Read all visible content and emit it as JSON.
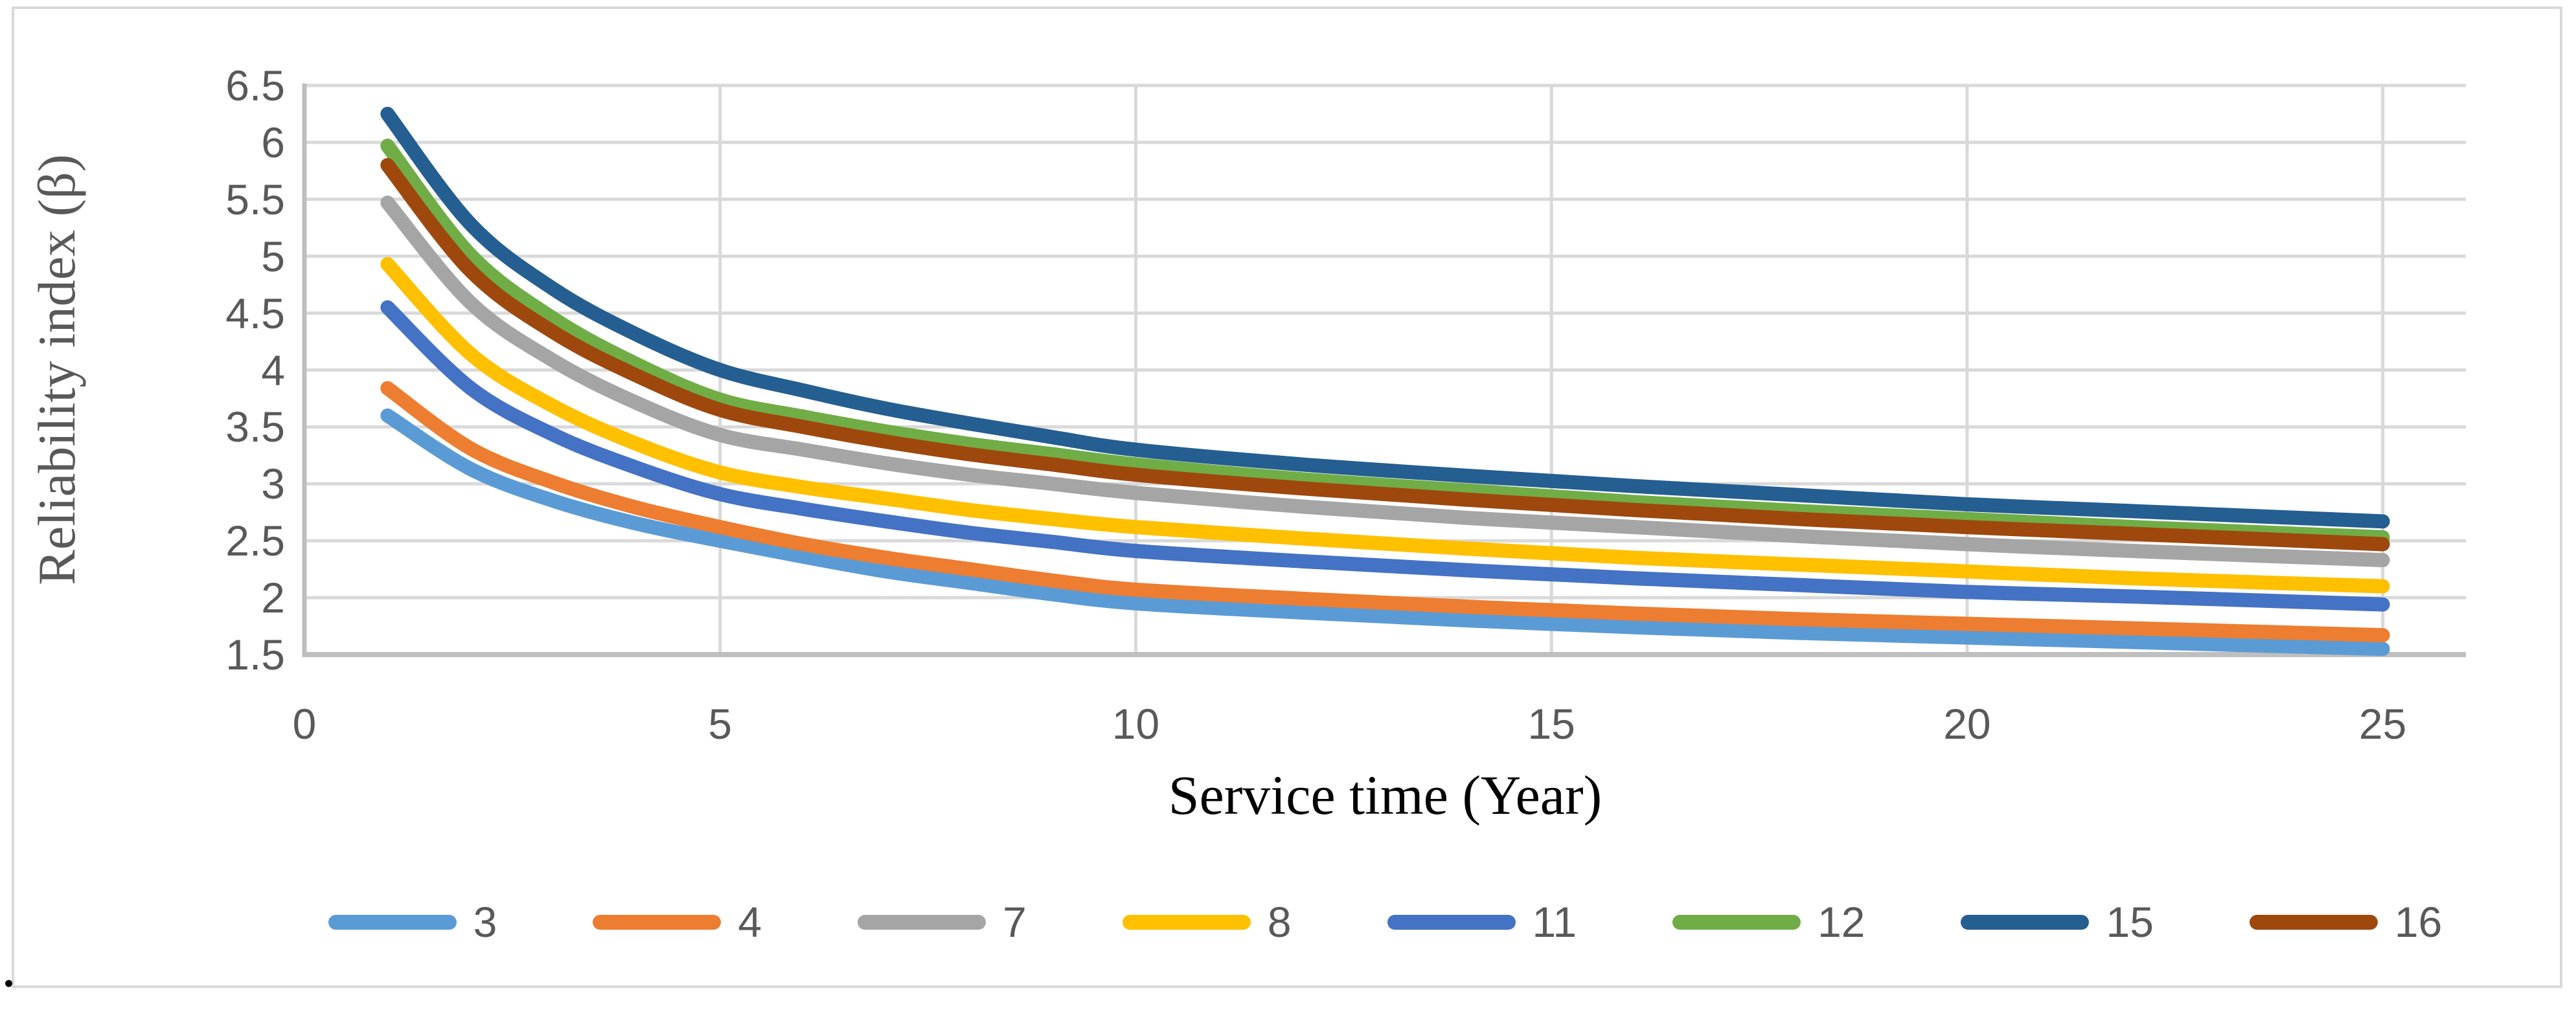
{
  "figure": {
    "trailing_period": "."
  },
  "colors": {
    "gridline": "#D9D9D9",
    "axis_line": "#BFBFBF",
    "tick_text": "#595959",
    "x_title_text": "#000000",
    "y_title_text": "#595959",
    "figure_border": "#D9D9D9",
    "background": "#FFFFFF"
  },
  "chart_data": {
    "type": "line",
    "title": "",
    "xlabel": "Service time (Year)",
    "ylabel": "Reliability index (β)",
    "xlim": [
      0,
      26
    ],
    "ylim": [
      1.5,
      6.5
    ],
    "grid": true,
    "legend_position": "bottom",
    "x_ticks": [
      0,
      5,
      10,
      15,
      20,
      25
    ],
    "x_tick_labels": [
      "0",
      "5",
      "10",
      "15",
      "20",
      "25"
    ],
    "y_ticks": [
      6.5,
      6,
      5.5,
      5,
      4.5,
      4,
      3.5,
      3,
      2.5,
      2,
      1.5
    ],
    "y_tick_labels": [
      "6.5",
      "6",
      "5.5",
      "5",
      "4.5",
      "4",
      "3.5",
      "3",
      "2.5",
      "2",
      "1.5"
    ],
    "x": [
      1,
      2,
      3,
      4,
      5,
      6,
      7,
      8,
      9,
      10,
      12,
      14,
      16,
      18,
      20,
      22,
      25
    ],
    "series": [
      {
        "name": "3",
        "color": "#5B9BD5",
        "values": [
          3.6,
          3.13,
          2.85,
          2.65,
          2.5,
          2.36,
          2.23,
          2.13,
          2.03,
          1.95,
          1.87,
          1.8,
          1.74,
          1.69,
          1.65,
          1.61,
          1.55
        ]
      },
      {
        "name": "4",
        "color": "#ED7D31",
        "values": [
          3.84,
          3.31,
          3.01,
          2.79,
          2.62,
          2.47,
          2.35,
          2.25,
          2.15,
          2.07,
          1.99,
          1.92,
          1.86,
          1.81,
          1.77,
          1.73,
          1.67
        ]
      },
      {
        "name": "7",
        "color": "#A5A5A5",
        "values": [
          5.47,
          4.59,
          4.08,
          3.71,
          3.43,
          3.3,
          3.18,
          3.08,
          3.0,
          2.92,
          2.8,
          2.7,
          2.62,
          2.54,
          2.47,
          2.41,
          2.33
        ]
      },
      {
        "name": "8",
        "color": "#FFC000",
        "values": [
          4.93,
          4.14,
          3.68,
          3.35,
          3.1,
          2.97,
          2.87,
          2.77,
          2.69,
          2.62,
          2.52,
          2.43,
          2.35,
          2.29,
          2.23,
          2.17,
          2.1
        ]
      },
      {
        "name": "11",
        "color": "#4472C4",
        "values": [
          4.55,
          3.84,
          3.43,
          3.14,
          2.91,
          2.78,
          2.67,
          2.57,
          2.49,
          2.41,
          2.32,
          2.24,
          2.17,
          2.11,
          2.05,
          2.01,
          1.94
        ]
      },
      {
        "name": "12",
        "color": "#70AD47",
        "values": [
          5.97,
          5.01,
          4.45,
          4.05,
          3.74,
          3.59,
          3.46,
          3.35,
          3.26,
          3.17,
          3.04,
          2.94,
          2.84,
          2.76,
          2.69,
          2.62,
          2.53
        ]
      },
      {
        "name": "15",
        "color": "#255E91",
        "values": [
          6.25,
          5.28,
          4.71,
          4.31,
          4.0,
          3.82,
          3.66,
          3.53,
          3.41,
          3.3,
          3.17,
          3.07,
          2.98,
          2.9,
          2.82,
          2.76,
          2.67
        ]
      },
      {
        "name": "16",
        "color": "#9E480E",
        "values": [
          5.8,
          4.87,
          4.33,
          3.95,
          3.65,
          3.5,
          3.37,
          3.26,
          3.17,
          3.08,
          2.96,
          2.86,
          2.77,
          2.69,
          2.62,
          2.56,
          2.47
        ]
      }
    ]
  }
}
